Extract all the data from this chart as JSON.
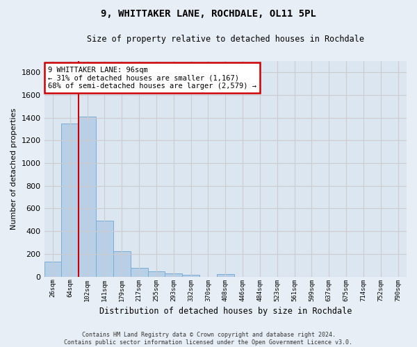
{
  "title": "9, WHITTAKER LANE, ROCHDALE, OL11 5PL",
  "subtitle": "Size of property relative to detached houses in Rochdale",
  "xlabel": "Distribution of detached houses by size in Rochdale",
  "ylabel": "Number of detached properties",
  "footer_line1": "Contains HM Land Registry data © Crown copyright and database right 2024.",
  "footer_line2": "Contains public sector information licensed under the Open Government Licence v3.0.",
  "bar_labels": [
    "26sqm",
    "64sqm",
    "102sqm",
    "141sqm",
    "179sqm",
    "217sqm",
    "255sqm",
    "293sqm",
    "332sqm",
    "370sqm",
    "408sqm",
    "446sqm",
    "484sqm",
    "523sqm",
    "561sqm",
    "599sqm",
    "637sqm",
    "675sqm",
    "714sqm",
    "752sqm",
    "790sqm"
  ],
  "bar_values": [
    135,
    1350,
    1410,
    490,
    225,
    75,
    45,
    28,
    15,
    0,
    20,
    0,
    0,
    0,
    0,
    0,
    0,
    0,
    0,
    0,
    0
  ],
  "bar_color": "#b8cfe8",
  "bar_edge_color": "#7aadd4",
  "annotation_text": "9 WHITTAKER LANE: 96sqm\n← 31% of detached houses are smaller (1,167)\n68% of semi-detached houses are larger (2,579) →",
  "annotation_box_color": "#ffffff",
  "annotation_border_color": "#cc0000",
  "vline_color": "#cc0000",
  "vline_bar_index": 1.5,
  "ylim": [
    0,
    1900
  ],
  "yticks": [
    0,
    200,
    400,
    600,
    800,
    1000,
    1200,
    1400,
    1600,
    1800
  ],
  "grid_color": "#cccccc",
  "bg_color": "#e8eef5",
  "plot_bg_color": "#dce6f0"
}
